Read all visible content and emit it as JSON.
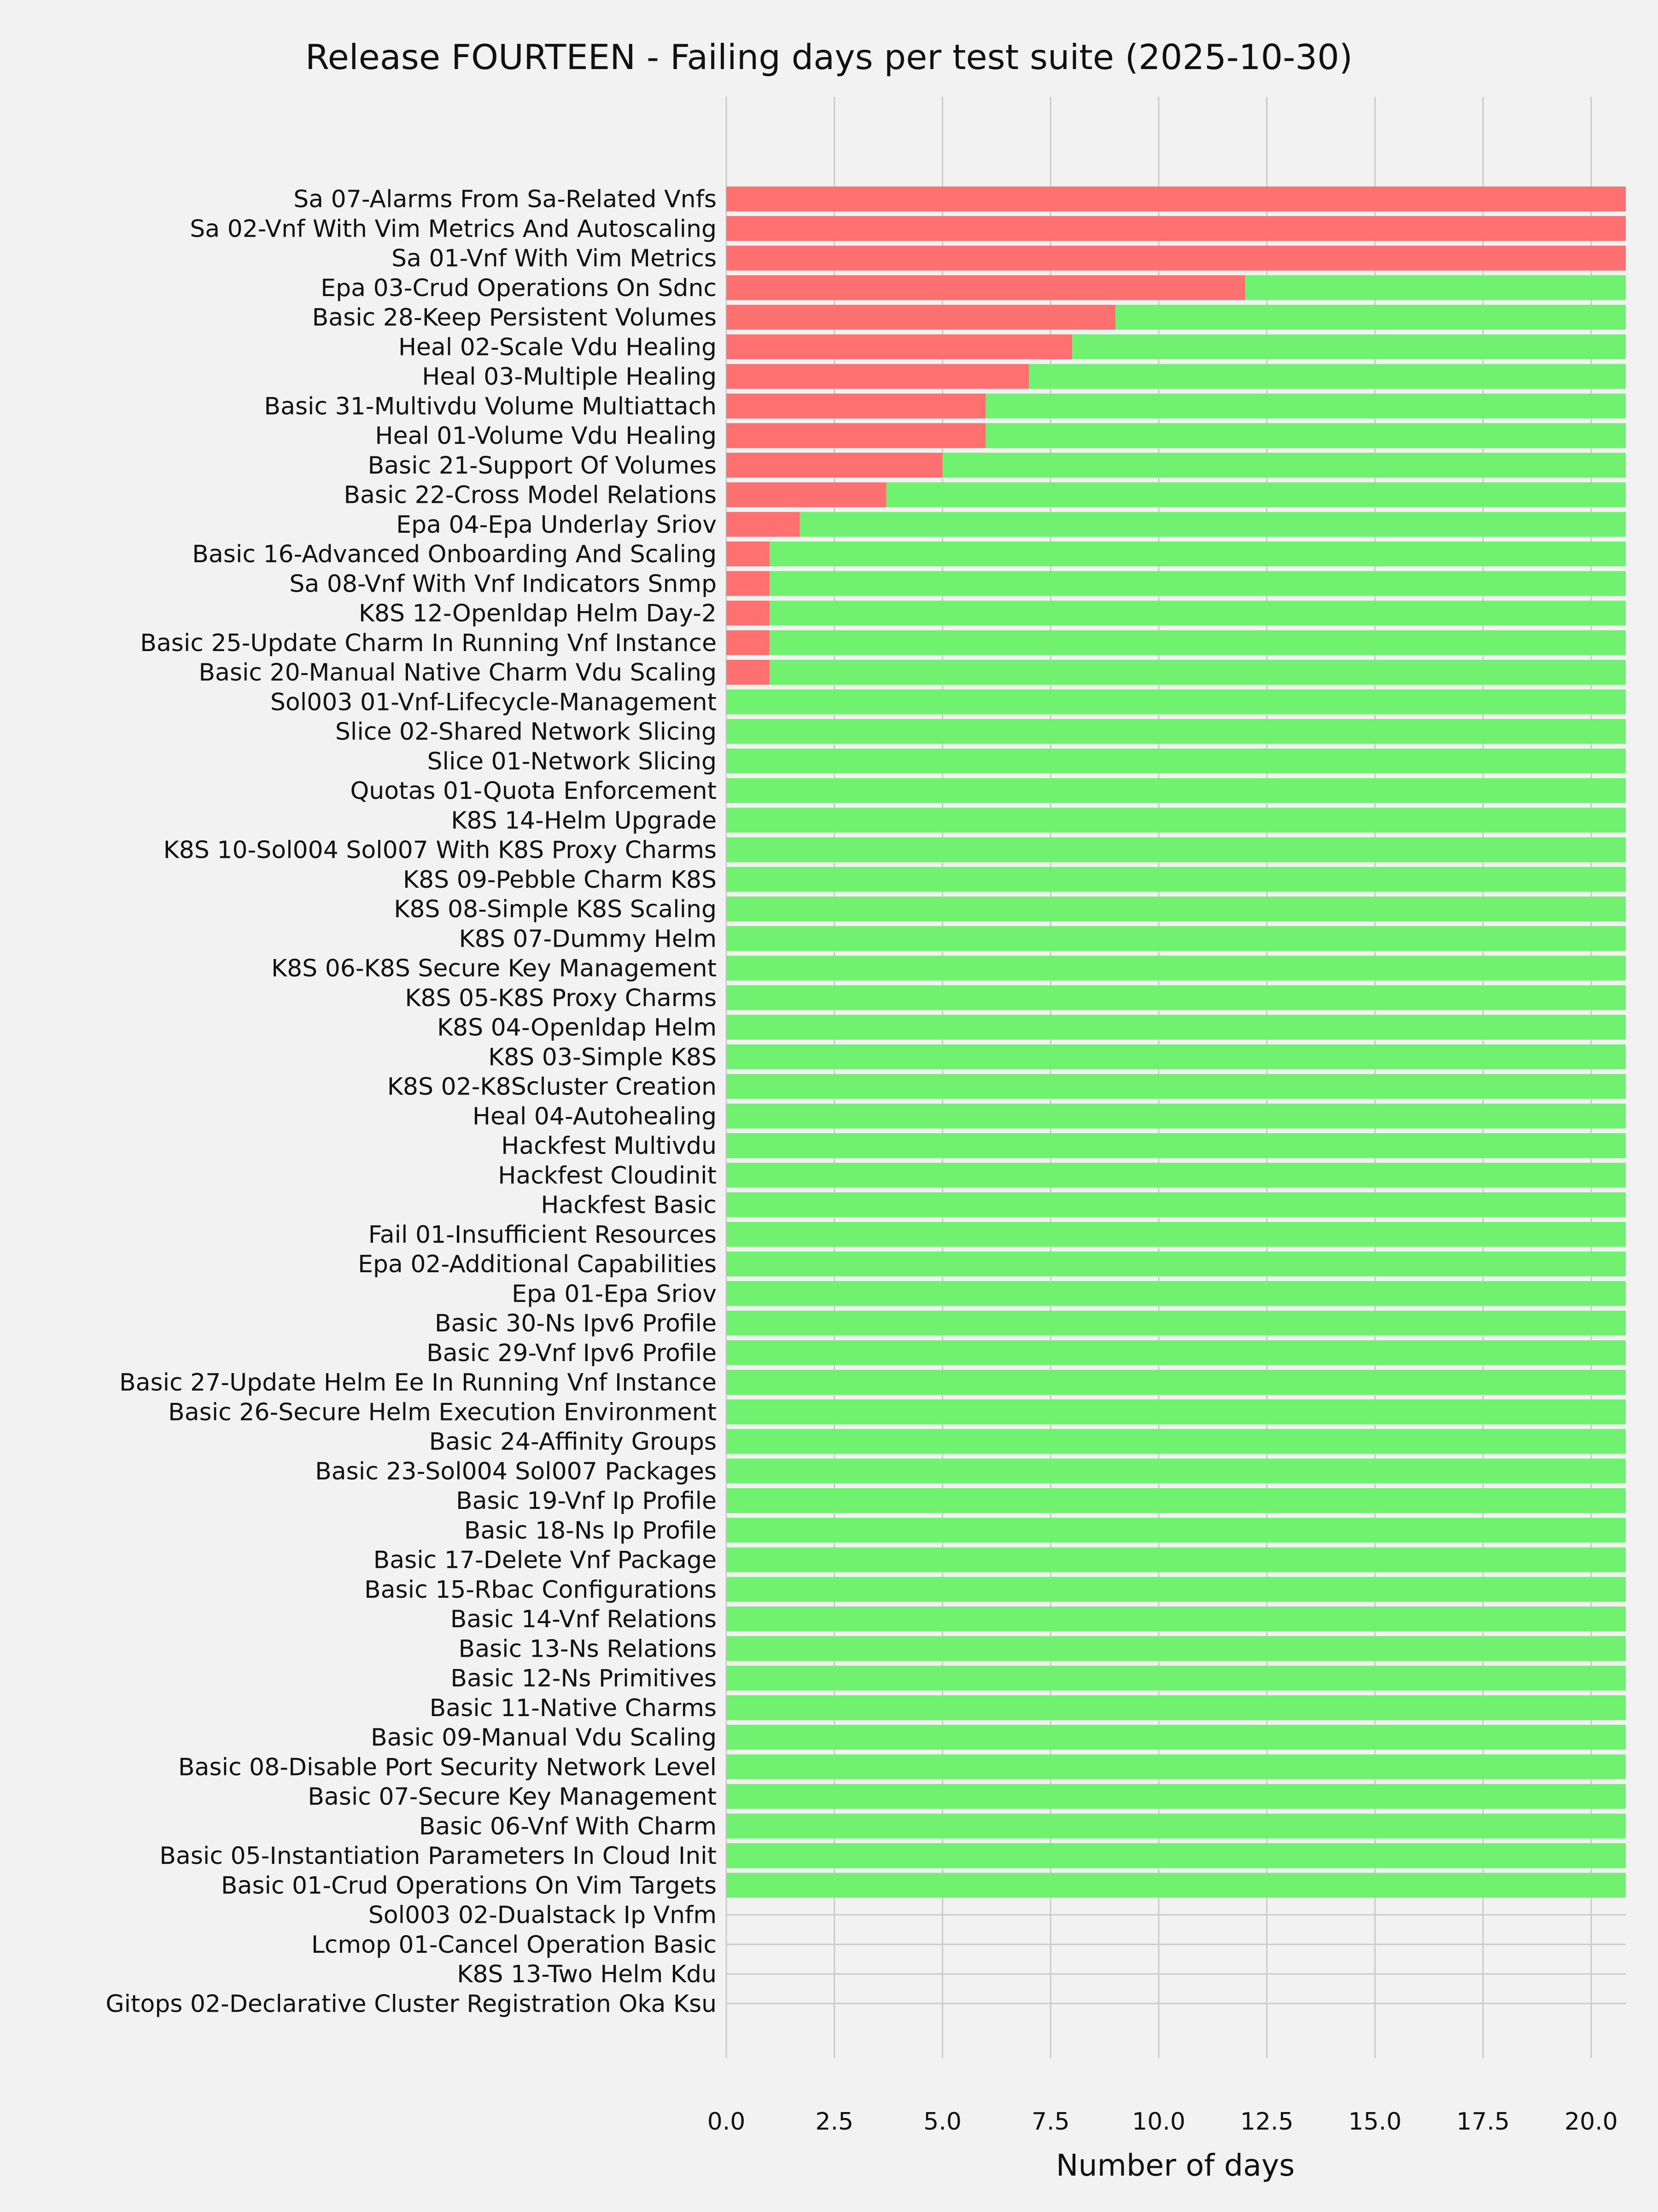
{
  "chart_data": {
    "type": "bar",
    "orientation": "horizontal",
    "stacked": true,
    "title": "Release FOURTEEN - Failing days per test suite (2025-10-30)",
    "xlabel": "Number of days",
    "ylabel": "",
    "xlim": [
      0,
      20.8
    ],
    "xticks": [
      "0.0",
      "2.5",
      "5.0",
      "7.5",
      "10.0",
      "12.5",
      "15.0",
      "17.5",
      "20.0"
    ],
    "grid": true,
    "legend": "none",
    "colors": {
      "failing": "#ff7070",
      "passing": "#70f170",
      "background": "#f2f2f2",
      "grid": "#cbcbcb",
      "text": "#111111"
    },
    "categories": [
      "Sa 07-Alarms From Sa-Related Vnfs",
      "Sa 02-Vnf With Vim Metrics And Autoscaling",
      "Sa 01-Vnf With Vim Metrics",
      "Epa 03-Crud Operations On Sdnc",
      "Basic 28-Keep Persistent Volumes",
      "Heal 02-Scale Vdu Healing",
      "Heal 03-Multiple Healing",
      "Basic 31-Multivdu Volume Multiattach",
      "Heal 01-Volume Vdu Healing",
      "Basic 21-Support Of Volumes",
      "Basic 22-Cross Model Relations",
      "Epa 04-Epa Underlay Sriov",
      "Basic 16-Advanced Onboarding And Scaling",
      "Sa 08-Vnf With Vnf Indicators Snmp",
      "K8S 12-Openldap Helm Day-2",
      "Basic 25-Update Charm In Running Vnf Instance",
      "Basic 20-Manual Native Charm Vdu Scaling",
      "Sol003 01-Vnf-Lifecycle-Management",
      "Slice 02-Shared Network Slicing",
      "Slice 01-Network Slicing",
      "Quotas 01-Quota Enforcement",
      "K8S 14-Helm Upgrade",
      "K8S 10-Sol004 Sol007 With K8S Proxy Charms",
      "K8S 09-Pebble Charm K8S",
      "K8S 08-Simple K8S Scaling",
      "K8S 07-Dummy Helm",
      "K8S 06-K8S Secure Key Management",
      "K8S 05-K8S Proxy Charms",
      "K8S 04-Openldap Helm",
      "K8S 03-Simple K8S",
      "K8S 02-K8Scluster Creation",
      "Heal 04-Autohealing",
      "Hackfest Multivdu",
      "Hackfest Cloudinit",
      "Hackfest Basic",
      "Fail 01-Insufficient Resources",
      "Epa 02-Additional Capabilities",
      "Epa 01-Epa Sriov",
      "Basic 30-Ns Ipv6 Profile",
      "Basic 29-Vnf Ipv6 Profile",
      "Basic 27-Update Helm Ee In Running Vnf Instance",
      "Basic 26-Secure Helm Execution Environment",
      "Basic 24-Affinity Groups",
      "Basic 23-Sol004 Sol007 Packages",
      "Basic 19-Vnf Ip Profile",
      "Basic 18-Ns Ip Profile",
      "Basic 17-Delete Vnf Package",
      "Basic 15-Rbac Configurations",
      "Basic 14-Vnf Relations",
      "Basic 13-Ns Relations",
      "Basic 12-Ns Primitives",
      "Basic 11-Native Charms",
      "Basic 09-Manual Vdu Scaling",
      "Basic 08-Disable Port Security Network Level",
      "Basic 07-Secure Key Management",
      "Basic 06-Vnf With Charm",
      "Basic 05-Instantiation Parameters In Cloud Init",
      "Basic 01-Crud Operations On Vim Targets",
      "Sol003 02-Dualstack Ip Vnfm",
      "Lcmop 01-Cancel Operation Basic",
      "K8S 13-Two Helm Kdu",
      "Gitops 02-Declarative Cluster Registration Oka Ksu"
    ],
    "series": [
      {
        "values": [
          20.8,
          20.8,
          20.8,
          12,
          9,
          8,
          7,
          6,
          6,
          5,
          3.7,
          1.7,
          1,
          1,
          1,
          1,
          1,
          0,
          0,
          0,
          0,
          0,
          0,
          0,
          0,
          0,
          0,
          0,
          0,
          0,
          0,
          0,
          0,
          0,
          0,
          0,
          0,
          0,
          0,
          0,
          0,
          0,
          0,
          0,
          0,
          0,
          0,
          0,
          0,
          0,
          0,
          0,
          0,
          0,
          0,
          0,
          0,
          0,
          0,
          0,
          0,
          0
        ]
      },
      {
        "values": [
          0,
          0,
          0,
          8.8,
          11.8,
          12.8,
          13.8,
          14.8,
          14.8,
          15.8,
          17.1,
          19.1,
          19.8,
          19.8,
          19.8,
          19.8,
          19.8,
          20.8,
          20.8,
          20.8,
          20.8,
          20.8,
          20.8,
          20.8,
          20.8,
          20.8,
          20.8,
          20.8,
          20.8,
          20.8,
          20.8,
          20.8,
          20.8,
          20.8,
          20.8,
          20.8,
          20.8,
          20.8,
          20.8,
          20.8,
          20.8,
          20.8,
          20.8,
          20.8,
          20.8,
          20.8,
          20.8,
          20.8,
          20.8,
          20.8,
          20.8,
          20.8,
          20.8,
          20.8,
          20.8,
          20.8,
          20.8,
          20.8,
          0,
          0,
          0,
          0
        ]
      }
    ]
  }
}
